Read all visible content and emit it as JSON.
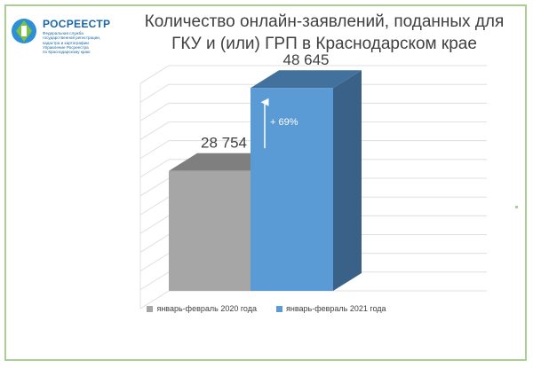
{
  "logo": {
    "name": "РОСРЕЕСТР",
    "subtitle": "Федеральная служба\nгосударственной регистрации,\nкадастра и картографии\nУправление Росреестра\nпо Краснодарскому краю"
  },
  "header": {
    "title": "Количество онлайн-заявлений, поданных для ГКУ и (или) ГРП в Краснодарском крае"
  },
  "chart_data": {
    "type": "bar",
    "categories": [
      "январь-февраль 2020 года",
      "январь-февраль 2021 года"
    ],
    "values": [
      28754,
      48645
    ],
    "value_labels": [
      "28 754",
      "48 645"
    ],
    "annotation": "+ 69%",
    "ylim": [
      0,
      54000
    ],
    "grid": true,
    "legend_position": "bottom",
    "colors": [
      "#a6a6a6",
      "#5b9bd5"
    ],
    "title": "Количество онлайн-заявлений, поданных для ГКУ и (или) ГРП в Краснодарском крае"
  }
}
